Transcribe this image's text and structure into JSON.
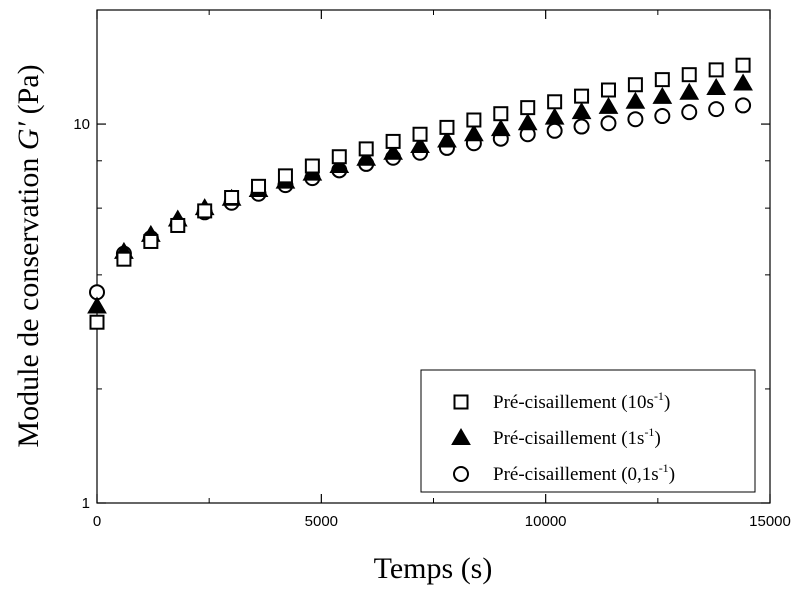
{
  "chart_data": {
    "type": "scatter",
    "xlabel": "Temps (s)",
    "ylabel_prefix": "Module de conservation ",
    "ylabel_symbol": "G′",
    "ylabel_suffix": " (Pa)",
    "xlim": [
      0,
      15000
    ],
    "ylim": [
      1,
      20
    ],
    "yscale": "log",
    "xticks": [
      0,
      5000,
      10000,
      15000
    ],
    "xtick_labels": [
      "0",
      "5000",
      "10000",
      "15000"
    ],
    "yticks": [
      1,
      10
    ],
    "ytick_labels": [
      "1",
      "10"
    ],
    "grid": false,
    "legend_position": "bottom-right",
    "series": [
      {
        "name": "Pré-cisaillement (10s-1)",
        "legend_main": "Pré-cisaillement (10s",
        "legend_sup": "-1",
        "legend_end": ")",
        "marker": "square",
        "x": [
          0,
          600,
          1200,
          1800,
          2400,
          3000,
          3600,
          4200,
          4800,
          5400,
          6000,
          6600,
          7200,
          7800,
          8400,
          9000,
          9600,
          10200,
          10800,
          11400,
          12000,
          12600,
          13200,
          13800,
          14400
        ],
        "y": [
          3.0,
          4.4,
          4.9,
          5.4,
          5.9,
          6.4,
          6.85,
          7.3,
          7.75,
          8.2,
          8.6,
          9.0,
          9.4,
          9.8,
          10.25,
          10.65,
          11.05,
          11.45,
          11.85,
          12.3,
          12.7,
          13.1,
          13.5,
          13.9,
          14.3
        ]
      },
      {
        "name": "Pré-cisaillement (1s-1)",
        "legend_main": "Pré-cisaillement (1s",
        "legend_sup": "-1",
        "legend_end": ")",
        "marker": "triangle",
        "x": [
          0,
          600,
          1200,
          1800,
          2400,
          3000,
          3600,
          4200,
          4800,
          5400,
          6000,
          6600,
          7200,
          7800,
          8400,
          9000,
          9600,
          10200,
          10800,
          11400,
          12000,
          12600,
          13200,
          13800,
          14400
        ],
        "y": [
          3.3,
          4.6,
          5.1,
          5.6,
          6.0,
          6.35,
          6.7,
          7.05,
          7.4,
          7.75,
          8.1,
          8.4,
          8.75,
          9.05,
          9.4,
          9.7,
          10.05,
          10.4,
          10.75,
          11.1,
          11.45,
          11.8,
          12.1,
          12.45,
          12.8
        ]
      },
      {
        "name": "Pré-cisaillement (0,1s-1)",
        "legend_main": "Pré-cisaillement (0,1s",
        "legend_sup": "-1",
        "legend_end": ")",
        "marker": "circle",
        "x": [
          0,
          600,
          1200,
          1800,
          2400,
          3000,
          3600,
          4200,
          4800,
          5400,
          6000,
          6600,
          7200,
          7800,
          8400,
          9000,
          9600,
          10200,
          10800,
          11400,
          12000,
          12600,
          13200,
          13800,
          14400
        ],
        "y": [
          3.6,
          4.55,
          5.0,
          5.45,
          5.85,
          6.2,
          6.55,
          6.9,
          7.2,
          7.55,
          7.85,
          8.15,
          8.4,
          8.65,
          8.9,
          9.15,
          9.4,
          9.6,
          9.85,
          10.05,
          10.3,
          10.5,
          10.75,
          10.95,
          11.2
        ]
      }
    ]
  }
}
